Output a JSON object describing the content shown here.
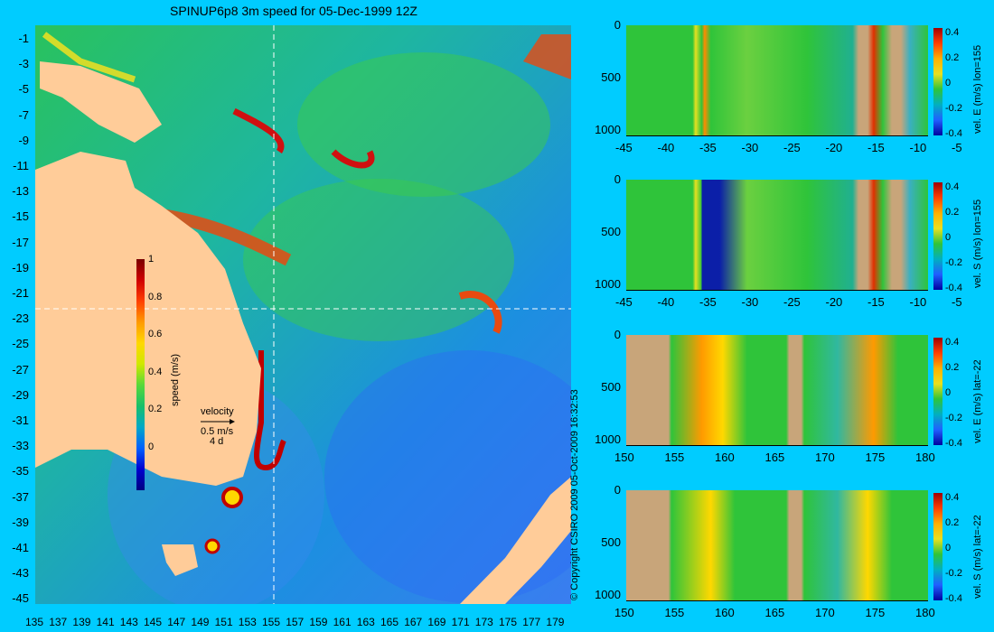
{
  "title": "SPINUP6p8 3m speed for 05-Dec-1999 12Z",
  "map": {
    "y_ticks": [
      "-1",
      "-3",
      "-5",
      "-7",
      "-9",
      "-11",
      "-13",
      "-15",
      "-17",
      "-19",
      "-21",
      "-23",
      "-25",
      "-27",
      "-29",
      "-31",
      "-33",
      "-35",
      "-37",
      "-39",
      "-41",
      "-43",
      "-45"
    ],
    "x_ticks": [
      "135",
      "137",
      "139",
      "141",
      "143",
      "145",
      "147",
      "149",
      "151",
      "153",
      "155",
      "157",
      "159",
      "161",
      "163",
      "165",
      "167",
      "169",
      "171",
      "173",
      "175",
      "177",
      "179"
    ],
    "colorbar": {
      "label": "speed (m/s)",
      "ticks": [
        "1",
        "0.8",
        "0.6",
        "0.4",
        "0.2",
        "0"
      ]
    },
    "velocity_legend": {
      "label": "velocity",
      "scale": "0.5 m/s",
      "period": "4 d"
    }
  },
  "copyright": "© Copyright CSIRO 2009  05-Oct-2009 16:32:53",
  "panels": [
    {
      "label": "vel. E (m/s) lon=155",
      "y_ticks": [
        "0",
        "500",
        "1000"
      ],
      "x_ticks": [
        "-45",
        "-40",
        "-35",
        "-30",
        "-25",
        "-20",
        "-15",
        "-10",
        "-5"
      ],
      "cbar_ticks": [
        "0.4",
        "0.2",
        "0",
        "-0.2",
        "-0.4"
      ]
    },
    {
      "label": "vel. S (m/s) lon=155",
      "y_ticks": [
        "0",
        "500",
        "1000"
      ],
      "x_ticks": [
        "-45",
        "-40",
        "-35",
        "-30",
        "-25",
        "-20",
        "-15",
        "-10",
        "-5"
      ],
      "cbar_ticks": [
        "0.4",
        "0.2",
        "0",
        "-0.2",
        "-0.4"
      ]
    },
    {
      "label": "vel. E (m/s) lat=-22",
      "y_ticks": [
        "0",
        "500",
        "1000"
      ],
      "x_ticks": [
        "150",
        "155",
        "160",
        "165",
        "170",
        "175",
        "180"
      ],
      "cbar_ticks": [
        "0.4",
        "0.2",
        "0",
        "-0.2",
        "-0.4"
      ]
    },
    {
      "label": "vel. S (m/s) lat=-22",
      "y_ticks": [
        "0",
        "500",
        "1000"
      ],
      "x_ticks": [
        "150",
        "155",
        "160",
        "165",
        "170",
        "175",
        "180"
      ],
      "cbar_ticks": [
        "0.4",
        "0.2",
        "0",
        "-0.2",
        "-0.4"
      ]
    }
  ]
}
